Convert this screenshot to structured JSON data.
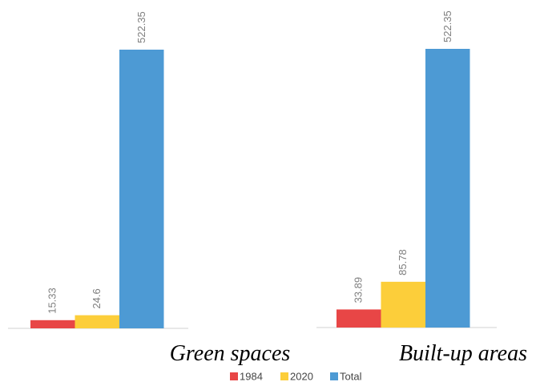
{
  "chart_data": [
    {
      "type": "bar",
      "title": "Green spaces",
      "values": [
        15.33,
        24.6,
        522.35
      ]
    },
    {
      "type": "bar",
      "title": "Built-up areas",
      "values": [
        33.89,
        85.78,
        522.35
      ]
    }
  ],
  "legend": {
    "names": [
      "1984",
      "2020",
      "Total"
    ],
    "colors": [
      "#e84646",
      "#fcce3a",
      "#4d9ad4"
    ]
  }
}
